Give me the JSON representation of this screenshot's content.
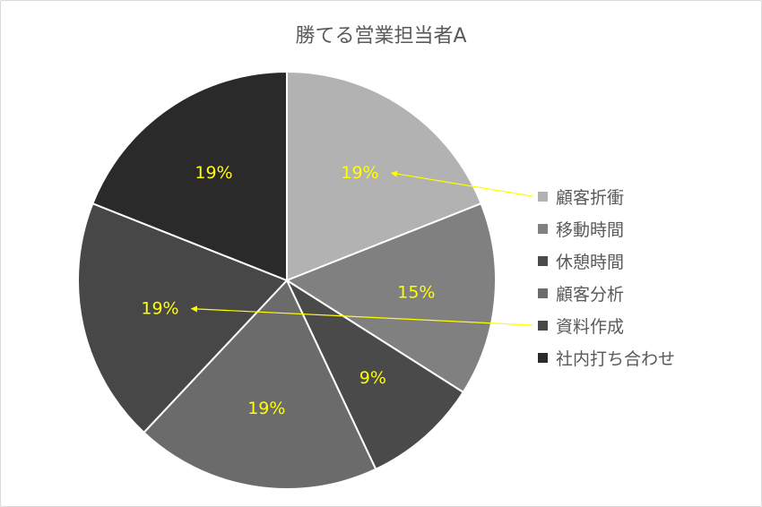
{
  "chart_data": {
    "type": "pie",
    "title": "勝てる営業担当者A",
    "categories": [
      "顧客折衝",
      "移動時間",
      "休憩時間",
      "顧客分析",
      "資料作成",
      "社内打ち合わせ"
    ],
    "values": [
      19,
      15,
      9,
      19,
      19,
      19
    ],
    "data_labels": [
      "19%",
      "15%",
      "9%",
      "19%",
      "19%",
      "19%"
    ],
    "colors": [
      "#b2b2b2",
      "#808080",
      "#4a4a4a",
      "#6b6b6b",
      "#474747",
      "#2a2a2a"
    ],
    "label_color": "#ffff00",
    "legend_position": "right",
    "start_angle_deg": 0,
    "direction": "clockwise",
    "annotations": [
      {
        "type": "arrow",
        "from_legend": "顧客折衝",
        "to_label": "19%",
        "slice_index": 0,
        "color": "#ffff00"
      },
      {
        "type": "arrow",
        "from_legend": "資料作成",
        "to_label": "19%",
        "slice_index": 4,
        "color": "#ffff00"
      }
    ]
  }
}
